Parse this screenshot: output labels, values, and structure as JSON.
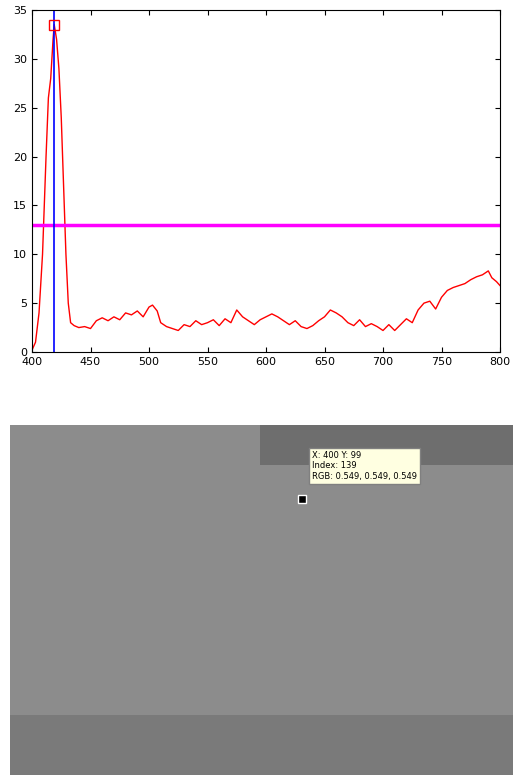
{
  "chart_data": {
    "type": "line",
    "x": [
      400,
      403,
      406,
      409,
      412,
      414,
      416,
      418,
      419,
      421,
      423,
      425,
      427,
      429,
      431,
      433,
      436,
      440,
      445,
      450,
      455,
      460,
      465,
      470,
      475,
      480,
      485,
      490,
      495,
      500,
      503,
      507,
      510,
      515,
      520,
      525,
      530,
      535,
      540,
      545,
      550,
      555,
      560,
      565,
      570,
      575,
      580,
      585,
      590,
      595,
      600,
      605,
      610,
      615,
      620,
      625,
      630,
      635,
      640,
      645,
      650,
      655,
      660,
      665,
      670,
      675,
      680,
      685,
      690,
      695,
      700,
      705,
      710,
      715,
      720,
      725,
      730,
      735,
      740,
      745,
      750,
      755,
      760,
      765,
      770,
      775,
      780,
      785,
      790,
      793,
      797,
      800
    ],
    "series": [
      {
        "color": "#ff0000",
        "values": [
          0.2,
          1,
          4,
          10,
          20,
          26,
          28,
          32,
          33.5,
          32,
          29,
          24,
          17,
          10,
          5,
          3,
          2.7,
          2.5,
          2.6,
          2.4,
          3.2,
          3.5,
          3.2,
          3.6,
          3.3,
          4,
          3.8,
          4.2,
          3.6,
          4.6,
          4.8,
          4.2,
          3.0,
          2.6,
          2.4,
          2.2,
          2.8,
          2.6,
          3.2,
          2.8,
          3.0,
          3.3,
          2.7,
          3.4,
          3.0,
          4.3,
          3.6,
          3.2,
          2.8,
          3.3,
          3.6,
          3.9,
          3.6,
          3.2,
          2.8,
          3.2,
          2.6,
          2.4,
          2.7,
          3.2,
          3.6,
          4.3,
          4.0,
          3.6,
          3.0,
          2.7,
          3.3,
          2.6,
          2.9,
          2.6,
          2.2,
          2.8,
          2.2,
          2.8,
          3.4,
          3.0,
          4.3,
          5.0,
          5.2,
          4.4,
          5.6,
          6.3,
          6.6,
          6.8,
          7.0,
          7.4,
          7.7,
          7.9,
          8.3,
          7.6,
          7.2,
          6.8
        ]
      }
    ],
    "hline": {
      "value": 13,
      "color": "#ff00ff"
    },
    "vline": {
      "value": 419,
      "color": "#0000ff"
    },
    "peak": {
      "x": 419,
      "y": 33.5,
      "color": "#ff0000",
      "marker": "square"
    },
    "xlim": [
      400,
      800
    ],
    "xticks": [
      400,
      450,
      500,
      550,
      600,
      650,
      700,
      750,
      800
    ],
    "ylim": [
      0,
      35
    ],
    "yticks": [
      0,
      5,
      10,
      15,
      20,
      25,
      30,
      35
    ],
    "grid": false
  },
  "image_datatip": {
    "lines": [
      "X: 400 Y: 99",
      "Index: 139",
      "RGB: 0.549, 0.549, 0.549"
    ]
  }
}
